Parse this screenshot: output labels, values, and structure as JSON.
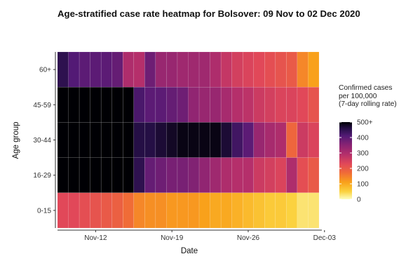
{
  "chart_data": {
    "type": "heatmap",
    "title": "Age-stratified case rate heatmap for Bolsover: 09 Nov to 02 Dec 2020",
    "xlabel": "Date",
    "ylabel": "Age group",
    "x_tick_labels": [
      "Nov-12",
      "Nov-19",
      "Nov-26",
      "Dec-03"
    ],
    "dates": [
      "2020-11-09",
      "2020-11-10",
      "2020-11-11",
      "2020-11-12",
      "2020-11-13",
      "2020-11-14",
      "2020-11-15",
      "2020-11-16",
      "2020-11-17",
      "2020-11-18",
      "2020-11-19",
      "2020-11-20",
      "2020-11-21",
      "2020-11-22",
      "2020-11-23",
      "2020-11-24",
      "2020-11-25",
      "2020-11-26",
      "2020-11-27",
      "2020-11-28",
      "2020-11-29",
      "2020-11-30",
      "2020-12-01",
      "2020-12-02"
    ],
    "age_groups": [
      "60+",
      "45-59",
      "30-44",
      "16-29",
      "0-15"
    ],
    "legend": {
      "title_lines": [
        "Confirmed cases",
        "per 100,000",
        "(7-day rolling rate)"
      ],
      "tick_labels": [
        "500+",
        "400",
        "300",
        "200",
        "100",
        "0"
      ],
      "range": [
        0,
        500
      ]
    },
    "values": [
      [
        450,
        410,
        400,
        400,
        400,
        390,
        300,
        290,
        380,
        330,
        330,
        320,
        320,
        320,
        300,
        270,
        250,
        240,
        230,
        220,
        210,
        200,
        140,
        110
      ],
      [
        500,
        500,
        500,
        500,
        500,
        500,
        500,
        420,
        400,
        400,
        390,
        380,
        340,
        330,
        330,
        310,
        290,
        280,
        260,
        250,
        240,
        240,
        230,
        210
      ],
      [
        500,
        500,
        500,
        500,
        500,
        500,
        500,
        460,
        460,
        470,
        480,
        490,
        490,
        490,
        490,
        470,
        430,
        400,
        330,
        310,
        300,
        180,
        260,
        240
      ],
      [
        500,
        500,
        500,
        500,
        500,
        500,
        500,
        450,
        390,
        380,
        370,
        370,
        360,
        340,
        320,
        300,
        290,
        290,
        260,
        250,
        240,
        300,
        220,
        200
      ],
      [
        230,
        230,
        220,
        210,
        200,
        190,
        170,
        140,
        130,
        130,
        120,
        120,
        120,
        110,
        100,
        100,
        90,
        80,
        70,
        60,
        60,
        50,
        30,
        30
      ]
    ]
  }
}
